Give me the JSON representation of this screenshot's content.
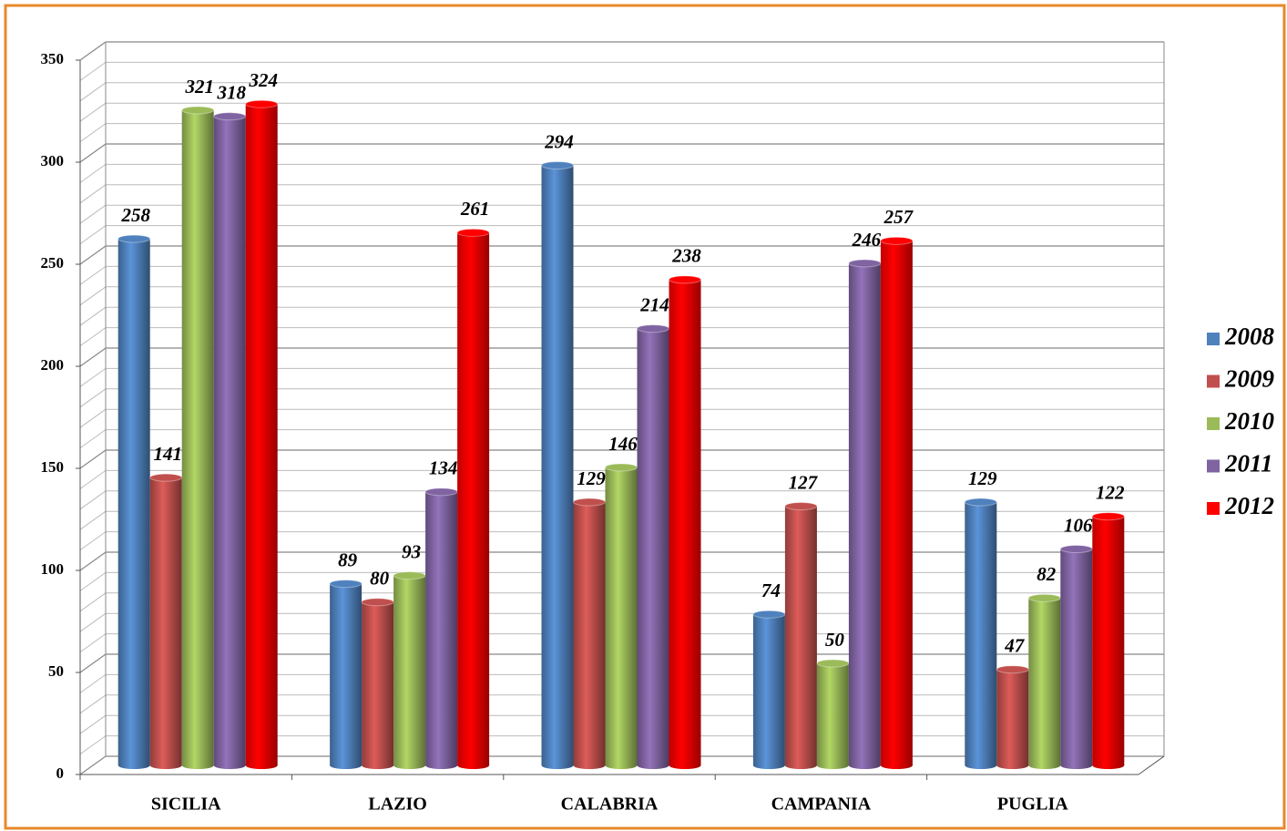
{
  "chart_data": {
    "type": "bar",
    "categories": [
      "SICILIA",
      "LAZIO",
      "CALABRIA",
      "CAMPANIA",
      "PUGLIA"
    ],
    "series": [
      {
        "name": "2008",
        "color": "#4f81bd",
        "values": [
          258,
          89,
          294,
          74,
          129
        ]
      },
      {
        "name": "2009",
        "color": "#c0504d",
        "values": [
          141,
          80,
          129,
          127,
          47
        ]
      },
      {
        "name": "2010",
        "color": "#9bbb59",
        "values": [
          321,
          93,
          146,
          50,
          82
        ]
      },
      {
        "name": "2011",
        "color": "#8064a2",
        "values": [
          318,
          134,
          214,
          246,
          106
        ]
      },
      {
        "name": "2012",
        "color": "#ff0000",
        "values": [
          324,
          261,
          238,
          257,
          122
        ]
      }
    ],
    "ylim": [
      0,
      350
    ],
    "yticks": [
      0,
      50,
      100,
      150,
      200,
      250,
      300,
      350
    ],
    "grid": true,
    "legend": "right"
  }
}
